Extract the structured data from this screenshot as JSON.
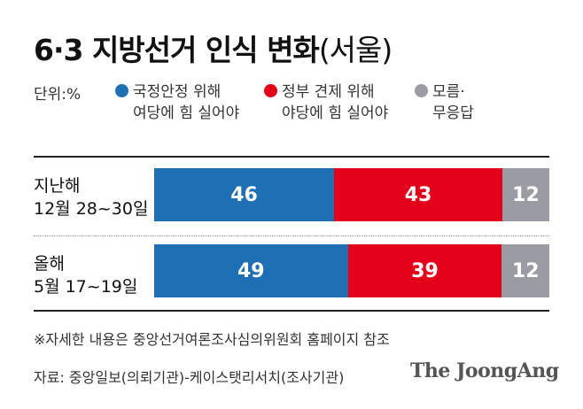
{
  "title": {
    "main": "6·3 지방선거 인식 변화",
    "sub": "(서울)"
  },
  "legend": {
    "unit": "단위:%",
    "items": [
      {
        "line1": "국정안정 위해",
        "line2": "여당에 힘 실어야",
        "color": "#1e6fb4"
      },
      {
        "line1": "정부 견제 위해",
        "line2": "야당에 힘 실어야",
        "color": "#e2001b"
      },
      {
        "line1": "모름·",
        "line2": "무응답",
        "color": "#9b9ba3"
      }
    ]
  },
  "chart_data": {
    "type": "bar",
    "orientation": "horizontal",
    "stacked": true,
    "categories": [
      {
        "line1": "지난해",
        "line2": "12월 28~30일"
      },
      {
        "line1": "올해",
        "line2": "5월 17~19일"
      }
    ],
    "series": [
      {
        "name": "국정안정 위해 여당에 힘 실어야",
        "color": "#1e6fb4",
        "values": [
          46,
          49
        ]
      },
      {
        "name": "정부 견제 위해 야당에 힘 실어야",
        "color": "#e2001b",
        "values": [
          43,
          39
        ]
      },
      {
        "name": "모름·무응답",
        "color": "#9b9ba3",
        "values": [
          12,
          12
        ]
      }
    ]
  },
  "note": "※자세한 내용은 중앙선거여론조사심의위원회 홈페이지 참조",
  "source": "자료: 중앙일보(의뢰기관)-케이스탯리서치(조사기관)",
  "logo": "The JoongAng"
}
